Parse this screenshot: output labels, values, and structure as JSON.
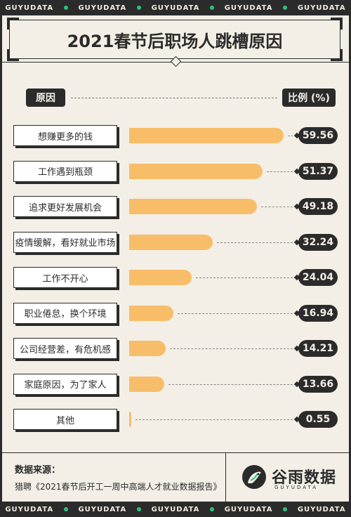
{
  "ticker": {
    "text": "GUYUDATA",
    "repeat": 5
  },
  "header": {
    "title": "2021春节后职场人跳槽原因",
    "left_label": "原因",
    "right_label": "比例 (%)"
  },
  "chart_data": {
    "type": "bar",
    "orientation": "horizontal",
    "title": "2021春节后职场人跳槽原因",
    "xlabel": "比例 (%)",
    "ylabel": "原因",
    "xlim": [
      0,
      60
    ],
    "categories": [
      "想赚更多的钱",
      "工作遇到瓶颈",
      "追求更好发展机会",
      "疫情缓解，看好就业市场",
      "工作不开心",
      "职业倦怠，换个环境",
      "公司经营差，有危机感",
      "家庭原因，为了家人",
      "其他"
    ],
    "values": [
      59.56,
      51.37,
      49.18,
      32.24,
      24.04,
      16.94,
      14.21,
      13.66,
      0.55
    ],
    "value_labels": [
      "59.56",
      "51.37",
      "49.18",
      "32.24",
      "24.04",
      "16.94",
      "14.21",
      "13.66",
      "0.55"
    ],
    "bar_color": "#f8bd69"
  },
  "footer": {
    "source_title": "数据来源：",
    "source_text": "猎聘《2021春节后开工一周中高端人才就业数据报告》",
    "logo_main": "谷雨数据",
    "logo_sub": "GUYUDATA"
  },
  "colors": {
    "dark": "#2b2b2b",
    "paper": "#f3efe6",
    "accent_green": "#2ec27e",
    "bar": "#f8bd69"
  }
}
